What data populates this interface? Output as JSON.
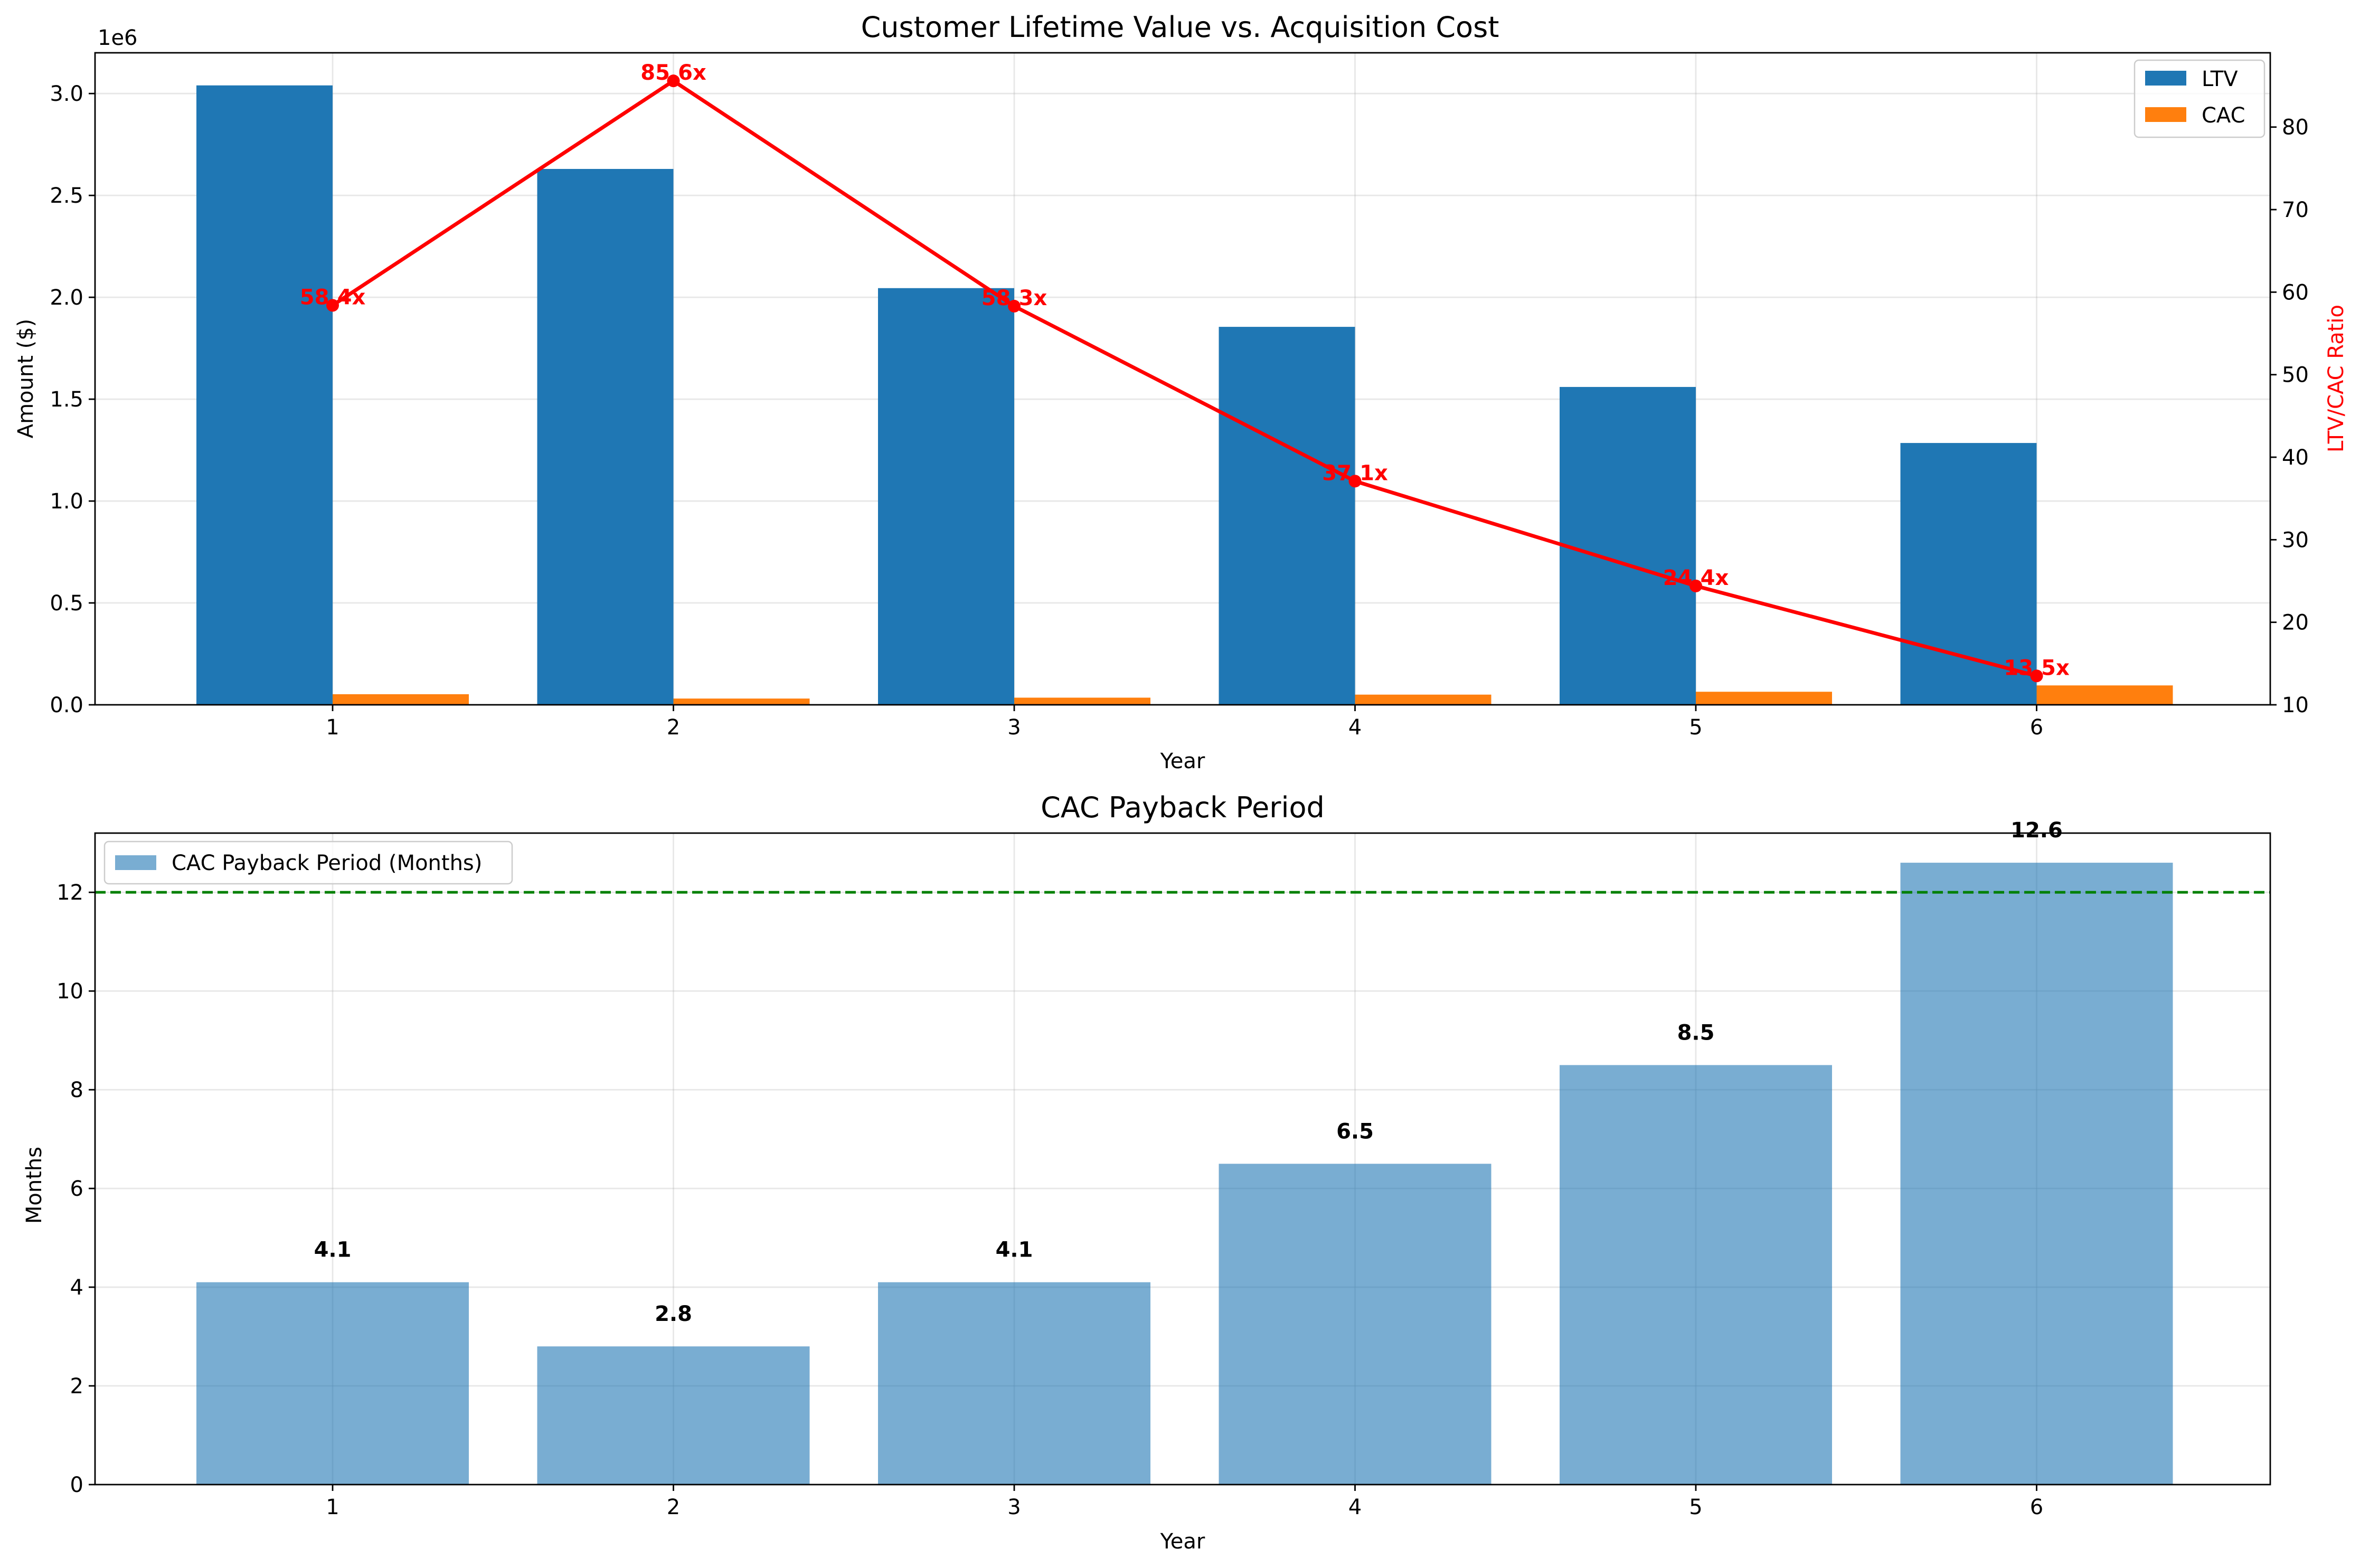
{
  "chart_data": [
    {
      "type": "bar",
      "title": "Customer Lifetime Value vs. Acquisition Cost",
      "xlabel": "Year",
      "ylabel": "Amount ($)",
      "y_offset_label": "1e6",
      "categories": [
        "1",
        "2",
        "3",
        "4",
        "5",
        "6"
      ],
      "ylim": [
        0,
        3200000
      ],
      "yticks": [
        0,
        500000,
        1000000,
        1500000,
        2000000,
        2500000,
        3000000
      ],
      "ytick_labels": [
        "0.0",
        "0.5",
        "1.0",
        "1.5",
        "2.0",
        "2.5",
        "3.0"
      ],
      "series": [
        {
          "name": "LTV",
          "color": "#1f77b4",
          "values": [
            3040000,
            2630000,
            2045000,
            1855000,
            1560000,
            1285000
          ]
        },
        {
          "name": "CAC",
          "color": "#ff7f0e",
          "values": [
            52000,
            30700,
            35100,
            50000,
            64100,
            95200
          ]
        }
      ],
      "secondary_axis": {
        "type": "line",
        "ylabel": "LTV/CAC Ratio",
        "color": "#ff0000",
        "ylim": [
          10,
          89
        ],
        "yticks": [
          10,
          20,
          30,
          40,
          50,
          60,
          70,
          80
        ],
        "values": [
          58.4,
          85.6,
          58.3,
          37.1,
          24.4,
          13.5
        ],
        "labels": [
          "58.4x",
          "85.6x",
          "58.3x",
          "37.1x",
          "24.4x",
          "13.5x"
        ]
      },
      "legend": "top-right",
      "grid": true
    },
    {
      "type": "bar",
      "title": "CAC Payback Period",
      "xlabel": "Year",
      "ylabel": "Months",
      "categories": [
        "1",
        "2",
        "3",
        "4",
        "5",
        "6"
      ],
      "ylim": [
        0,
        13.2
      ],
      "yticks": [
        0,
        2,
        4,
        6,
        8,
        10,
        12
      ],
      "series": [
        {
          "name": "CAC Payback Period (Months)",
          "color": "#1f77b4",
          "values": [
            4.1,
            2.8,
            4.1,
            6.5,
            8.5,
            12.6
          ]
        }
      ],
      "value_labels": [
        "4.1",
        "2.8",
        "4.1",
        "6.5",
        "8.5",
        "12.6"
      ],
      "reference_line": {
        "value": 12,
        "color": "#008000",
        "style": "dashed"
      },
      "legend": "top-left",
      "grid": true
    }
  ]
}
